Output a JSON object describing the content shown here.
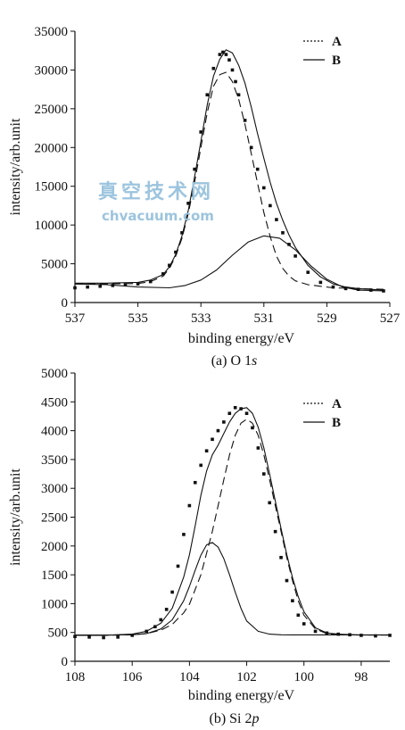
{
  "watermark": {
    "line1": "真空技术网",
    "line2": "chvacuum.com"
  },
  "chart_data": [
    {
      "type": "line",
      "caption": "(a) O 1s",
      "caption_prefix": "(a) O 1",
      "caption_italic": "s",
      "xlabel": "binding energy/eV",
      "ylabel": "intensity/arb.unit",
      "xlim": [
        537,
        527
      ],
      "ylim": [
        0,
        35000
      ],
      "xticks": [
        537,
        535,
        533,
        531,
        529,
        527
      ],
      "yticks": [
        0,
        5000,
        10000,
        15000,
        20000,
        25000,
        30000,
        35000
      ],
      "legend": {
        "position": "top-right",
        "entries": [
          {
            "label": "A",
            "style": "dotted"
          },
          {
            "label": "B",
            "style": "solid"
          }
        ]
      },
      "series": [
        {
          "style": "dotted-markers",
          "x": [
            537.0,
            536.6,
            536.2,
            535.8,
            535.4,
            535.0,
            534.6,
            534.2,
            534.0,
            533.8,
            533.6,
            533.4,
            533.2,
            533.0,
            532.8,
            532.6,
            532.4,
            532.3,
            532.2,
            532.1,
            532.0,
            531.9,
            531.8,
            531.6,
            531.4,
            531.2,
            531.0,
            530.8,
            530.6,
            530.4,
            530.2,
            530.0,
            529.6,
            529.2,
            528.8,
            528.4,
            528.0,
            527.6,
            527.2
          ],
          "y": [
            1900,
            2000,
            2100,
            2200,
            2300,
            2400,
            2700,
            3700,
            4800,
            6500,
            9000,
            12800,
            17200,
            22000,
            26800,
            30200,
            32000,
            32300,
            32000,
            31300,
            30000,
            28500,
            26800,
            23500,
            20000,
            17200,
            14800,
            12500,
            10700,
            9000,
            7500,
            6000,
            3900,
            2600,
            2000,
            1800,
            1700,
            1600,
            1500
          ]
        },
        {
          "style": "dashed",
          "x": [
            537.0,
            536.0,
            535.0,
            534.6,
            534.2,
            534.0,
            533.8,
            533.6,
            533.4,
            533.2,
            533.0,
            532.8,
            532.6,
            532.4,
            532.2,
            532.0,
            531.8,
            531.6,
            531.4,
            531.2,
            531.0,
            530.8,
            530.6,
            530.4,
            530.2,
            530.0,
            529.6,
            529.2,
            528.8,
            528.0,
            527.2
          ],
          "y": [
            2400,
            2400,
            2450,
            2700,
            3400,
            4400,
            6000,
            8300,
            11500,
            15500,
            20000,
            24500,
            27900,
            29400,
            29700,
            28500,
            26200,
            23000,
            19200,
            15400,
            11600,
            8500,
            6000,
            4400,
            3400,
            2800,
            2300,
            2100,
            1900,
            1800,
            1700
          ]
        },
        {
          "style": "solid",
          "x": [
            537.0,
            536.0,
            535.0,
            534.0,
            533.5,
            533.0,
            532.5,
            532.0,
            531.5,
            531.0,
            530.5,
            530.0,
            529.5,
            529.0,
            528.5,
            528.0,
            527.2
          ],
          "y": [
            2400,
            2300,
            2000,
            1900,
            2200,
            2900,
            4200,
            6100,
            7800,
            8600,
            8300,
            6800,
            4700,
            3000,
            2000,
            1600,
            1500
          ]
        },
        {
          "style": "solid",
          "x": [
            537.0,
            536.0,
            535.0,
            534.6,
            534.2,
            534.0,
            533.8,
            533.6,
            533.4,
            533.2,
            533.0,
            532.8,
            532.6,
            532.4,
            532.2,
            532.0,
            531.8,
            531.6,
            531.4,
            531.2,
            531.0,
            530.8,
            530.6,
            530.4,
            530.2,
            530.0,
            529.6,
            529.2,
            528.8,
            528.4,
            528.0,
            527.2
          ],
          "y": [
            2500,
            2500,
            2600,
            2900,
            3600,
            4600,
            6200,
            8600,
            11900,
            16200,
            20800,
            25500,
            29200,
            31400,
            32600,
            32200,
            30600,
            28300,
            25200,
            21800,
            18600,
            15500,
            12800,
            10600,
            8700,
            7100,
            4800,
            3300,
            2400,
            2000,
            1800,
            1600
          ]
        }
      ]
    },
    {
      "type": "line",
      "caption": "(b) Si 2p",
      "caption_prefix": "(b) Si 2",
      "caption_italic": "p",
      "xlabel": "binding energy/eV",
      "ylabel": "intensity/arb.unit",
      "xlim": [
        108,
        97
      ],
      "ylim": [
        0,
        5000
      ],
      "xticks": [
        108,
        106,
        104,
        102,
        100,
        98
      ],
      "yticks": [
        0,
        500,
        1000,
        1500,
        2000,
        2500,
        3000,
        3500,
        4000,
        4500,
        5000
      ],
      "legend": {
        "position": "top-right",
        "entries": [
          {
            "label": "A",
            "style": "dotted"
          },
          {
            "label": "B",
            "style": "solid"
          }
        ]
      },
      "series": [
        {
          "style": "dotted-markers",
          "x": [
            108.0,
            107.5,
            107.0,
            106.5,
            106.0,
            105.5,
            105.2,
            105.0,
            104.8,
            104.6,
            104.4,
            104.2,
            104.0,
            103.8,
            103.6,
            103.4,
            103.2,
            103.0,
            102.8,
            102.6,
            102.4,
            102.2,
            102.0,
            101.8,
            101.6,
            101.4,
            101.2,
            101.0,
            100.8,
            100.6,
            100.4,
            100.2,
            100.0,
            99.6,
            99.2,
            98.8,
            98.4,
            98.0,
            97.5,
            97.0
          ],
          "y": [
            430,
            420,
            410,
            420,
            450,
            520,
            600,
            720,
            900,
            1200,
            1650,
            2200,
            2700,
            3100,
            3400,
            3650,
            3850,
            4000,
            4150,
            4300,
            4400,
            4380,
            4300,
            4050,
            3700,
            3250,
            2750,
            2250,
            1800,
            1400,
            1050,
            800,
            650,
            520,
            490,
            470,
            460,
            450,
            440,
            450
          ]
        },
        {
          "style": "dashed",
          "x": [
            108.0,
            107.0,
            106.0,
            105.5,
            105.0,
            104.6,
            104.2,
            104.0,
            103.6,
            103.2,
            103.0,
            102.8,
            102.6,
            102.4,
            102.2,
            102.0,
            101.8,
            101.6,
            101.4,
            101.2,
            101.0,
            100.8,
            100.6,
            100.4,
            100.2,
            100.0,
            99.6,
            99.2,
            98.8,
            98.0,
            97.0
          ],
          "y": [
            450,
            450,
            460,
            480,
            540,
            640,
            840,
            990,
            1500,
            2250,
            2700,
            3150,
            3580,
            3920,
            4130,
            4200,
            4130,
            3920,
            3580,
            3150,
            2700,
            2250,
            1800,
            1400,
            1050,
            800,
            560,
            480,
            460,
            455,
            455
          ]
        },
        {
          "style": "solid",
          "x": [
            108.0,
            107.0,
            106.0,
            105.5,
            105.0,
            104.6,
            104.2,
            104.0,
            103.8,
            103.6,
            103.4,
            103.2,
            103.0,
            102.8,
            102.6,
            102.4,
            102.2,
            102.0,
            101.6,
            101.2,
            100.8,
            100.4,
            100.0,
            99.0,
            98.0,
            97.0
          ],
          "y": [
            455,
            455,
            460,
            480,
            560,
            720,
            1050,
            1300,
            1580,
            1840,
            2020,
            2060,
            1980,
            1780,
            1500,
            1200,
            920,
            700,
            520,
            470,
            460,
            458,
            458,
            458,
            458,
            458
          ]
        },
        {
          "style": "solid",
          "x": [
            108.0,
            107.0,
            106.0,
            105.5,
            105.0,
            104.6,
            104.2,
            104.0,
            103.8,
            103.6,
            103.4,
            103.2,
            103.0,
            102.8,
            102.6,
            102.4,
            102.2,
            102.0,
            101.8,
            101.6,
            101.4,
            101.2,
            101.0,
            100.8,
            100.6,
            100.4,
            100.2,
            100.0,
            99.6,
            99.2,
            98.8,
            98.0,
            97.0
          ],
          "y": [
            450,
            450,
            470,
            520,
            660,
            920,
            1460,
            1850,
            2350,
            2880,
            3300,
            3580,
            3750,
            3950,
            4150,
            4300,
            4380,
            4400,
            4300,
            4060,
            3700,
            3250,
            2780,
            2300,
            1850,
            1450,
            1120,
            860,
            580,
            490,
            470,
            455,
            455
          ]
        }
      ]
    }
  ]
}
